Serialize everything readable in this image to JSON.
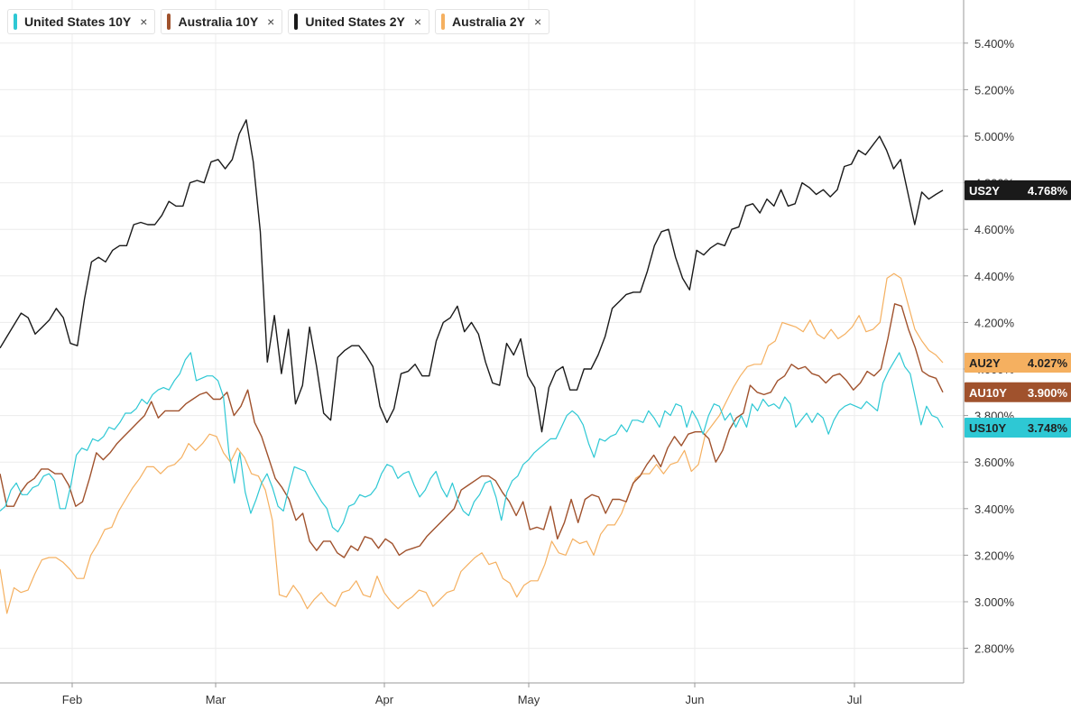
{
  "legend": [
    {
      "label": "United States 10Y",
      "close": "×",
      "color": "#2ec8d4"
    },
    {
      "label": "Australia 10Y",
      "close": "×",
      "color": "#a0522d"
    },
    {
      "label": "United States 2Y",
      "close": "×",
      "color": "#1a1a1a"
    },
    {
      "label": "Australia 2Y",
      "close": "×",
      "color": "#f5b060"
    }
  ],
  "chart_data": {
    "type": "line",
    "y_ticks": [
      "2.800%",
      "3.000%",
      "3.200%",
      "3.400%",
      "3.600%",
      "3.800%",
      "4.000%",
      "4.200%",
      "4.400%",
      "4.600%",
      "4.800%",
      "5.000%",
      "5.200%",
      "5.400%"
    ],
    "x_ticks": [
      "Feb",
      "Mar",
      "Apr",
      "May",
      "Jun",
      "Jul"
    ],
    "ylim": [
      2.65,
      5.55
    ],
    "grid": true,
    "series": [
      {
        "name": "United States 2Y",
        "tag": "US2Y",
        "last": "4.768%",
        "color": "#1a1a1a",
        "tag_text_color": "#ffffff",
        "width": 1.4,
        "values": [
          4.09,
          4.14,
          4.19,
          4.24,
          4.22,
          4.15,
          4.18,
          4.21,
          4.26,
          4.22,
          4.11,
          4.1,
          4.3,
          4.46,
          4.48,
          4.46,
          4.51,
          4.53,
          4.53,
          4.62,
          4.63,
          4.62,
          4.62,
          4.66,
          4.72,
          4.7,
          4.7,
          4.8,
          4.81,
          4.8,
          4.89,
          4.9,
          4.86,
          4.9,
          5.01,
          5.07,
          4.89,
          4.59,
          4.03,
          4.23,
          3.98,
          4.17,
          3.85,
          3.93,
          4.18,
          4.01,
          3.81,
          3.78,
          4.05,
          4.08,
          4.1,
          4.1,
          4.06,
          4.01,
          3.84,
          3.77,
          3.83,
          3.98,
          3.99,
          4.02,
          3.97,
          3.97,
          4.12,
          4.2,
          4.22,
          4.27,
          4.16,
          4.2,
          4.15,
          4.03,
          3.94,
          3.93,
          4.11,
          4.06,
          4.13,
          3.97,
          3.92,
          3.73,
          3.92,
          3.99,
          4.01,
          3.91,
          3.91,
          4.0,
          4.0,
          4.06,
          4.14,
          4.26,
          4.29,
          4.32,
          4.33,
          4.33,
          4.42,
          4.53,
          4.59,
          4.6,
          4.48,
          4.39,
          4.34,
          4.51,
          4.49,
          4.52,
          4.54,
          4.53,
          4.6,
          4.61,
          4.7,
          4.71,
          4.67,
          4.73,
          4.7,
          4.77,
          4.7,
          4.71,
          4.8,
          4.78,
          4.75,
          4.77,
          4.74,
          4.77,
          4.87,
          4.88,
          4.94,
          4.92,
          4.96,
          5.0,
          4.94,
          4.86,
          4.9,
          4.76,
          4.62,
          4.76,
          4.73,
          4.75,
          4.768
        ]
      },
      {
        "name": "Australia 2Y",
        "tag": "AU2Y",
        "last": "4.027%",
        "color": "#f5b060",
        "tag_text_color": "#222222",
        "width": 1.2,
        "values": [
          3.14,
          2.95,
          3.06,
          3.04,
          3.05,
          3.12,
          3.18,
          3.19,
          3.19,
          3.17,
          3.14,
          3.1,
          3.1,
          3.2,
          3.25,
          3.31,
          3.32,
          3.39,
          3.44,
          3.49,
          3.53,
          3.58,
          3.58,
          3.55,
          3.58,
          3.59,
          3.62,
          3.68,
          3.65,
          3.68,
          3.72,
          3.71,
          3.64,
          3.6,
          3.66,
          3.62,
          3.55,
          3.54,
          3.48,
          3.35,
          3.03,
          3.02,
          3.07,
          3.03,
          2.97,
          3.01,
          3.04,
          3.0,
          2.98,
          3.04,
          3.05,
          3.09,
          3.03,
          3.02,
          3.11,
          3.04,
          3.0,
          2.97,
          3.0,
          3.02,
          3.05,
          3.04,
          2.98,
          3.01,
          3.04,
          3.05,
          3.13,
          3.16,
          3.19,
          3.21,
          3.16,
          3.17,
          3.1,
          3.08,
          3.02,
          3.07,
          3.09,
          3.09,
          3.16,
          3.26,
          3.21,
          3.2,
          3.27,
          3.25,
          3.26,
          3.2,
          3.29,
          3.33,
          3.33,
          3.38,
          3.46,
          3.53,
          3.55,
          3.55,
          3.59,
          3.55,
          3.59,
          3.6,
          3.65,
          3.56,
          3.59,
          3.72,
          3.76,
          3.8,
          3.86,
          3.92,
          3.97,
          4.01,
          4.02,
          4.02,
          4.1,
          4.12,
          4.2,
          4.19,
          4.18,
          4.16,
          4.21,
          4.15,
          4.13,
          4.17,
          4.13,
          4.15,
          4.18,
          4.23,
          4.16,
          4.17,
          4.2,
          4.39,
          4.41,
          4.39,
          4.28,
          4.17,
          4.12,
          4.08,
          4.06,
          4.027
        ]
      },
      {
        "name": "Australia 10Y",
        "tag": "AU10Y",
        "last": "3.900%",
        "color": "#a0522d",
        "tag_text_color": "#ffffff",
        "width": 1.4,
        "values": [
          3.55,
          3.41,
          3.41,
          3.47,
          3.51,
          3.53,
          3.57,
          3.57,
          3.55,
          3.55,
          3.5,
          3.41,
          3.43,
          3.53,
          3.64,
          3.61,
          3.64,
          3.68,
          3.71,
          3.74,
          3.77,
          3.8,
          3.86,
          3.79,
          3.82,
          3.82,
          3.82,
          3.85,
          3.87,
          3.89,
          3.9,
          3.87,
          3.87,
          3.9,
          3.8,
          3.84,
          3.91,
          3.77,
          3.71,
          3.62,
          3.53,
          3.49,
          3.44,
          3.35,
          3.38,
          3.26,
          3.22,
          3.26,
          3.26,
          3.21,
          3.19,
          3.24,
          3.22,
          3.28,
          3.27,
          3.23,
          3.27,
          3.25,
          3.2,
          3.22,
          3.23,
          3.24,
          3.28,
          3.31,
          3.34,
          3.37,
          3.4,
          3.48,
          3.5,
          3.52,
          3.54,
          3.54,
          3.52,
          3.47,
          3.43,
          3.37,
          3.43,
          3.31,
          3.32,
          3.31,
          3.41,
          3.27,
          3.34,
          3.44,
          3.34,
          3.44,
          3.46,
          3.45,
          3.38,
          3.44,
          3.44,
          3.43,
          3.51,
          3.54,
          3.59,
          3.63,
          3.58,
          3.66,
          3.71,
          3.67,
          3.72,
          3.73,
          3.73,
          3.7,
          3.6,
          3.65,
          3.74,
          3.79,
          3.81,
          3.93,
          3.9,
          3.89,
          3.9,
          3.95,
          3.97,
          4.02,
          4.0,
          4.01,
          3.98,
          3.97,
          3.94,
          3.97,
          3.98,
          3.95,
          3.91,
          3.94,
          3.99,
          3.97,
          4.0,
          4.13,
          4.28,
          4.27,
          4.17,
          4.09,
          3.99,
          3.97,
          3.96,
          3.9
        ]
      },
      {
        "name": "United States 10Y",
        "tag": "US10Y",
        "last": "3.748%",
        "color": "#2ec8d4",
        "tag_text_color": "#222222",
        "width": 1.2,
        "values": [
          3.39,
          3.41,
          3.48,
          3.51,
          3.46,
          3.46,
          3.49,
          3.5,
          3.54,
          3.55,
          3.52,
          3.4,
          3.4,
          3.5,
          3.63,
          3.66,
          3.65,
          3.7,
          3.69,
          3.71,
          3.75,
          3.74,
          3.77,
          3.81,
          3.81,
          3.83,
          3.87,
          3.85,
          3.89,
          3.91,
          3.92,
          3.91,
          3.95,
          3.98,
          4.04,
          4.07,
          3.95,
          3.96,
          3.97,
          3.97,
          3.95,
          3.88,
          3.64,
          3.51,
          3.64,
          3.47,
          3.38,
          3.44,
          3.51,
          3.55,
          3.49,
          3.41,
          3.39,
          3.49,
          3.58,
          3.57,
          3.56,
          3.51,
          3.47,
          3.43,
          3.4,
          3.32,
          3.3,
          3.34,
          3.41,
          3.42,
          3.46,
          3.45,
          3.46,
          3.49,
          3.55,
          3.59,
          3.58,
          3.53,
          3.55,
          3.56,
          3.5,
          3.45,
          3.48,
          3.53,
          3.56,
          3.49,
          3.45,
          3.51,
          3.44,
          3.39,
          3.37,
          3.43,
          3.46,
          3.51,
          3.52,
          3.45,
          3.35,
          3.47,
          3.52,
          3.54,
          3.59,
          3.61,
          3.64,
          3.66,
          3.68,
          3.7,
          3.7,
          3.75,
          3.8,
          3.82,
          3.8,
          3.76,
          3.68,
          3.62,
          3.7,
          3.69,
          3.71,
          3.72,
          3.76,
          3.73,
          3.78,
          3.78,
          3.77,
          3.82,
          3.79,
          3.75,
          3.82,
          3.8,
          3.85,
          3.84,
          3.75,
          3.82,
          3.78,
          3.72,
          3.8,
          3.85,
          3.84,
          3.78,
          3.81,
          3.75,
          3.8,
          3.75,
          3.85,
          3.82,
          3.87,
          3.84,
          3.85,
          3.83,
          3.88,
          3.85,
          3.75,
          3.78,
          3.81,
          3.77,
          3.81,
          3.79,
          3.72,
          3.78,
          3.82,
          3.84,
          3.85,
          3.84,
          3.83,
          3.86,
          3.84,
          3.82,
          3.94,
          3.99,
          4.03,
          4.07,
          4.01,
          3.98,
          3.87,
          3.76,
          3.84,
          3.8,
          3.79,
          3.748
        ]
      }
    ]
  }
}
